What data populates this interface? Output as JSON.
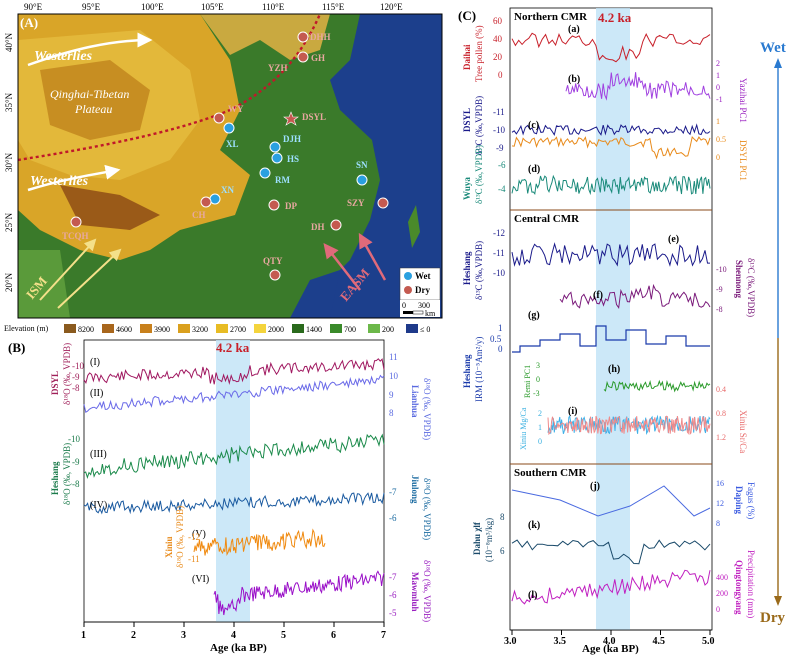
{
  "panel_a": {
    "label": "(A)",
    "lon_ticks": [
      "90°E",
      "95°E",
      "100°E",
      "105°E",
      "110°E",
      "115°E",
      "120°E"
    ],
    "lat_ticks": [
      "40°N",
      "35°N",
      "30°N",
      "25°N",
      "20°N"
    ],
    "westerlies": "Westerlies",
    "plateau_line1": "Qinghai-Tibetan",
    "plateau_line2": "Plateau",
    "ism": "ISM",
    "easm": "EASM",
    "legend_wet": "Wet",
    "legend_dry": "Dry",
    "scale_0": "0",
    "scale_300": "300",
    "scale_km": "km",
    "elevation_label": "Elevation (m)",
    "elevation_classes": [
      "8200",
      "4600",
      "3900",
      "3200",
      "2700",
      "2000",
      "1400",
      "700",
      "200",
      "≤ 0"
    ],
    "elevation_colors": [
      "#8a5a1e",
      "#a8661c",
      "#c8801c",
      "#daa01e",
      "#e8bc24",
      "#f4d43c",
      "#2a6a1c",
      "#3a8a2a",
      "#6cb84a",
      "#1e3a8a"
    ],
    "sites_wet": [
      "XL",
      "DJH",
      "HS",
      "RM",
      "XN",
      "SN"
    ],
    "sites_dry": [
      "DHH",
      "GH",
      "YZH",
      "WY",
      "DSYL",
      "DP",
      "CH",
      "TCQH",
      "SZY",
      "DH",
      "QTY"
    ]
  },
  "panel_b": {
    "label": "(B)",
    "title_event": "4.2 ka",
    "xlabel": "Age (ka BP)",
    "xticks": [
      "1",
      "2",
      "3",
      "4",
      "5",
      "6",
      "7"
    ],
    "series_labels": [
      "(I)",
      "(II)",
      "(III)",
      "(IV)",
      "(V)",
      "(VI)"
    ],
    "axis_dsyl": "DSYL",
    "axis_dsyl_unit": "δ¹⁸O (‰, VPDB)",
    "axis_lianhua": "Lianhua",
    "axis_lianhua_unit": "δ¹⁸O (‰, VPDB)",
    "axis_heshang": "Heshang",
    "axis_heshang_unit": "δ¹⁸O (‰, VPDB)",
    "axis_jiulong": "Jiulong",
    "axis_jiulong_unit": "δ¹⁸O (‰, VPDB)",
    "axis_xiniu": "Xiniu",
    "axis_xiniu_unit": "δ¹⁸O (‰, VPDB)",
    "axis_mawmluh": "Mawmluh",
    "axis_mawmluh_unit": "δ¹⁸O (‰, VPDB)",
    "ticks_dsyl": [
      "-10",
      "-9",
      "-8"
    ],
    "ticks_lianhua": [
      "11",
      "10",
      "9",
      "8"
    ],
    "ticks_heshang": [
      "-10",
      "-9",
      "-8"
    ],
    "ticks_jiulong": [
      "-7",
      "-6"
    ],
    "ticks_xiniu": [
      "-12",
      "-11"
    ],
    "ticks_mawmluh": [
      "-7",
      "-6",
      "-5"
    ]
  },
  "panel_c": {
    "label": "(C)",
    "title_event": "4.2 ka",
    "north": "Northern CMR",
    "central": "Central CMR",
    "south": "Southern CMR",
    "xlabel": "Age (ka BP)",
    "xticks": [
      "3.0",
      "3.5",
      "4.0",
      "4.5",
      "5.0"
    ],
    "letters": [
      "(a)",
      "(b)",
      "(c)",
      "(d)",
      "(e)",
      "(f)",
      "(g)",
      "(h)",
      "(i)",
      "(j)",
      "(k)",
      "(l)"
    ],
    "y_daihai": "Daihai",
    "y_daihai_unit": "Tree pollen (%)",
    "y_yazhai": "Yazihai PC1",
    "y_dsyl13": "DSYL",
    "y_dsyl13_unit": "δ¹³C (‰,VPDB)",
    "y_dsylpc1": "DSYL PC1",
    "y_wuya": "Wuya",
    "y_wuya_unit": "δ¹³C (‰,VPDB)",
    "y_heshang13": "Heshang",
    "y_heshang13_unit": "δ¹³C (‰,VPDB)",
    "y_shennong": "Shennong",
    "y_shennong_unit": "δ¹³C (‰,VPDB)",
    "y_irm": "Heshang",
    "y_irm_unit": "IRM (10⁻⁵Am²/y)",
    "y_remi": "Remi PC1",
    "y_xiniumg": "Xiniu Mg/Ca",
    "y_xiniusr": "Xiniu Sr/Ca",
    "y_daping": "Daping",
    "y_daping_unit": "Fagus (%)",
    "y_dahu": "Dahu χlf",
    "y_dahu_unit": "(10⁻⁸m³/kg)",
    "y_qtyp": "Qingtongyang",
    "y_qtyp_unit": "Precipitation (mm)",
    "ticks_daihai": [
      "60",
      "40",
      "20",
      "0"
    ],
    "ticks_yazhai": [
      "2",
      "1",
      "0",
      "-1"
    ],
    "ticks_dsyl13": [
      "-11",
      "-10",
      "-9"
    ],
    "ticks_dsylpc1": [
      "1",
      "0.5",
      "0"
    ],
    "ticks_wuya": [
      "-6",
      "-4"
    ],
    "ticks_heshang13": [
      "-12",
      "-11",
      "-10"
    ],
    "ticks_shennong": [
      "-10",
      "-9",
      "-8"
    ],
    "ticks_irm": [
      "1",
      "0.5",
      "0"
    ],
    "ticks_remi": [
      "3",
      "0",
      "-3"
    ],
    "ticks_mg": [
      "2",
      "1",
      "0"
    ],
    "ticks_sr": [
      "0.4",
      "0.8",
      "1.2"
    ],
    "ticks_daping": [
      "16",
      "12",
      "8"
    ],
    "ticks_dahu": [
      "8",
      "6"
    ],
    "ticks_qtyp": [
      "400",
      "200",
      "0"
    ]
  },
  "wet_dry": {
    "wet": "Wet",
    "dry": "Dry"
  }
}
